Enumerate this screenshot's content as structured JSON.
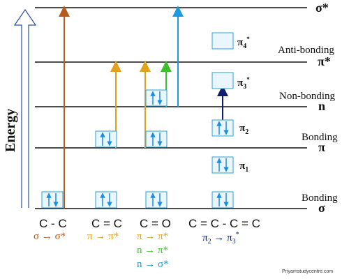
{
  "levels": {
    "sigma_star": "σ*",
    "pi_star": "π*",
    "n": "n",
    "pi": "π",
    "sigma": "σ"
  },
  "level_names": {
    "anti_bonding": "Anti-bonding",
    "non_bonding": "Non-bonding",
    "bonding_pi": "Bonding",
    "bonding_sigma": "Bonding"
  },
  "axis_label": "Energy",
  "orbitals": {
    "pi4": {
      "base": "π",
      "sub": "4",
      "sup": "*"
    },
    "pi3": {
      "base": "π",
      "sub": "3",
      "sup": "*"
    },
    "pi2": {
      "base": "π",
      "sub": "2"
    },
    "pi1": {
      "base": "π",
      "sub": "1"
    }
  },
  "bonds": [
    "C - C",
    "C = C",
    "C = O",
    "C = C - C = C"
  ],
  "transitions": {
    "cc": "σ → σ*",
    "c_eq_c": "π → π*",
    "co_1": "π → π*",
    "co_2": "n → π*",
    "co_3": "n → σ*",
    "diene": {
      "a": "π",
      "a_sub": "2",
      "arrow": " → ",
      "b": "π",
      "b_sub": "3",
      "b_sup": "*"
    }
  },
  "colors": {
    "sigma_sigma_star": "#b85a1c",
    "pi_pi_star": "#e0a21a",
    "n_pi_star": "#3cbf2c",
    "n_sigma_star": "#1a9be0",
    "pi2_pi3": "#0d1f6e",
    "electron": "#1a8fe0",
    "box_border": "#2aa0d8",
    "level_line": "#111111",
    "axis": "#2b4fa0"
  },
  "watermark": "Priyamstudycentre.com"
}
